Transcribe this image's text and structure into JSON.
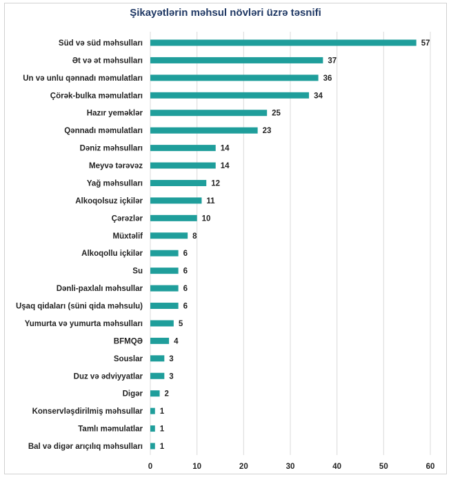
{
  "chart_data": {
    "type": "bar",
    "orientation": "horizontal",
    "title": "Şikayətlərin məhsul növləri üzrə təsnifi",
    "categories": [
      "Süd və süd məhsulları",
      "Ət və ət məhsulları",
      "Un və unlu qənnadı məmulatları",
      "Çörək-bulka məmulatları",
      "Hazır yeməklər",
      "Qənnadı məmulatları",
      "Dəniz məhsulları",
      "Meyvə tərəvəz",
      "Yağ məhsulları",
      "Alkoqolsuz içkilər",
      "Çərəzlər",
      "Müxtəlif",
      "Alkoqollu içkilər",
      "Su",
      "Dənli-paxlalı məhsullar",
      "Uşaq qidaları (süni qida məhsulu)",
      "Yumurta və yumurta məhsulları",
      "BFMQƏ",
      "Souslar",
      "Duz və ədviyyatlar",
      "Digər",
      "Konservləşdirilmiş məhsullar",
      "Tamlı məmulatlar",
      "Bal və digər arıçılıq məhsulları"
    ],
    "values": [
      57,
      37,
      36,
      34,
      25,
      23,
      14,
      14,
      12,
      11,
      10,
      8,
      6,
      6,
      6,
      6,
      5,
      4,
      3,
      3,
      2,
      1,
      1,
      1
    ],
    "xlim": [
      0,
      60
    ],
    "xticks": [
      0,
      10,
      20,
      30,
      40,
      50,
      60
    ],
    "xlabel": "",
    "ylabel": "",
    "grid": "vertical",
    "legend": "none",
    "bar_color": "#1f9e9b",
    "gridline_color": "#d9d9d9"
  }
}
